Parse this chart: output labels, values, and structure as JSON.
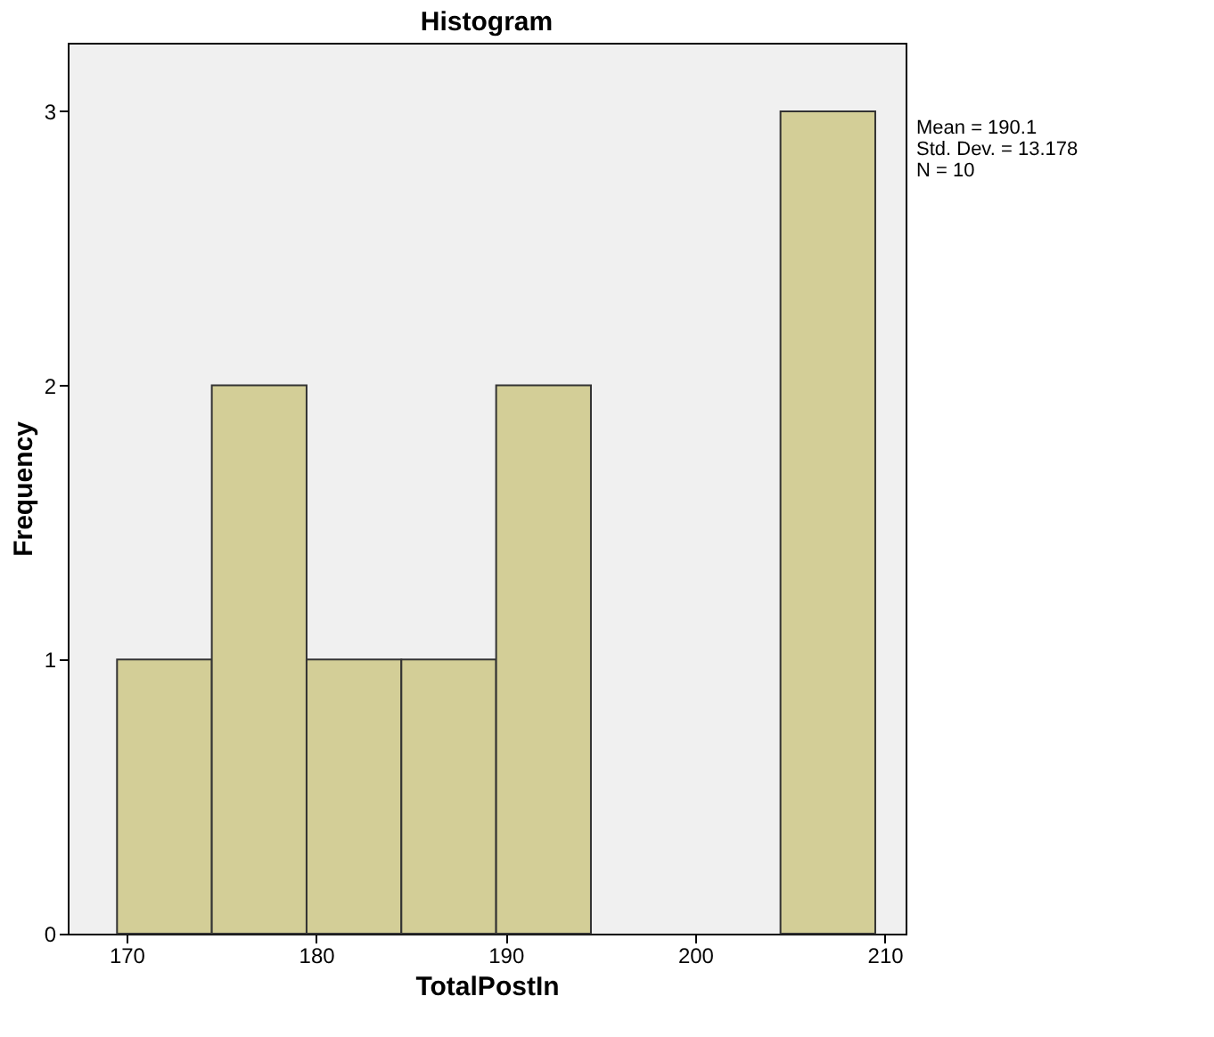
{
  "chart_data": {
    "type": "histogram",
    "title": "Histogram",
    "xlabel": "TotalPostIn",
    "ylabel": "Frequency",
    "bins": [
      169.5,
      174.5,
      179.5,
      184.5,
      189.5,
      194.5,
      199.5,
      204.5,
      209.5
    ],
    "values": [
      1,
      2,
      1,
      1,
      2,
      0,
      0,
      3
    ],
    "color": "#d3ce97",
    "xlim": [
      166.9,
      211.1
    ],
    "xticks": [
      170,
      180,
      190,
      200,
      210
    ],
    "ylim": [
      0,
      3.25
    ],
    "yticks": [
      0,
      1,
      2,
      3
    ],
    "grid": false,
    "legend": false,
    "annotations": [
      "Mean = 190.1",
      "Std. Dev. = 13.178",
      "N = 10"
    ]
  }
}
